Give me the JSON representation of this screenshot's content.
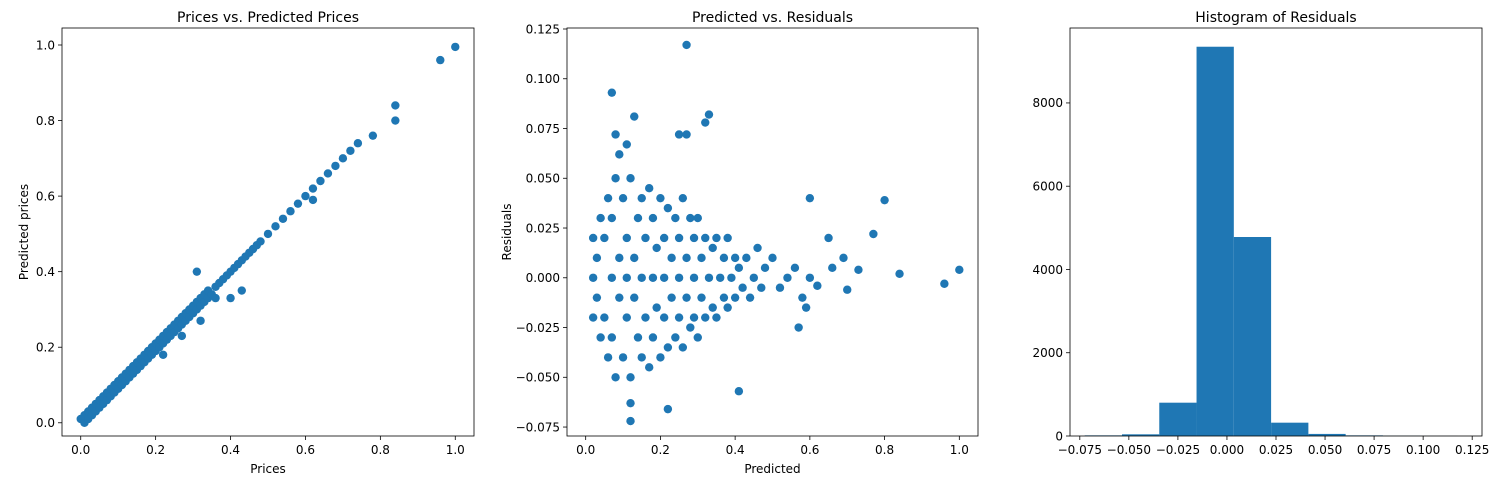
{
  "chart_data": [
    {
      "type": "scatter",
      "title": "Prices vs. Predicted Prices",
      "xlabel": "Prices",
      "ylabel": "Predicted prices",
      "xlim": [
        -0.05,
        1.05
      ],
      "ylim": [
        -0.035,
        1.045
      ],
      "xticks": [
        "0.0",
        "0.2",
        "0.4",
        "0.6",
        "0.8",
        "1.0"
      ],
      "xtick_values": [
        0,
        0.2,
        0.4,
        0.6,
        0.8,
        1.0
      ],
      "yticks": [
        "0.0",
        "0.2",
        "0.4",
        "0.6",
        "0.8",
        "1.0"
      ],
      "ytick_values": [
        0,
        0.2,
        0.4,
        0.6,
        0.8,
        1.0
      ],
      "color": "#1f77b4",
      "points": [
        [
          0.0,
          0.01
        ],
        [
          0.01,
          0.0
        ],
        [
          0.01,
          0.02
        ],
        [
          0.02,
          0.01
        ],
        [
          0.02,
          0.03
        ],
        [
          0.03,
          0.02
        ],
        [
          0.03,
          0.04
        ],
        [
          0.04,
          0.03
        ],
        [
          0.04,
          0.05
        ],
        [
          0.05,
          0.04
        ],
        [
          0.05,
          0.06
        ],
        [
          0.06,
          0.05
        ],
        [
          0.06,
          0.07
        ],
        [
          0.07,
          0.06
        ],
        [
          0.07,
          0.08
        ],
        [
          0.08,
          0.07
        ],
        [
          0.08,
          0.09
        ],
        [
          0.09,
          0.08
        ],
        [
          0.09,
          0.1
        ],
        [
          0.1,
          0.09
        ],
        [
          0.1,
          0.11
        ],
        [
          0.11,
          0.1
        ],
        [
          0.11,
          0.12
        ],
        [
          0.12,
          0.11
        ],
        [
          0.12,
          0.13
        ],
        [
          0.13,
          0.12
        ],
        [
          0.13,
          0.14
        ],
        [
          0.14,
          0.13
        ],
        [
          0.14,
          0.15
        ],
        [
          0.15,
          0.14
        ],
        [
          0.15,
          0.16
        ],
        [
          0.16,
          0.15
        ],
        [
          0.16,
          0.17
        ],
        [
          0.17,
          0.16
        ],
        [
          0.17,
          0.18
        ],
        [
          0.18,
          0.17
        ],
        [
          0.18,
          0.19
        ],
        [
          0.19,
          0.18
        ],
        [
          0.19,
          0.2
        ],
        [
          0.2,
          0.19
        ],
        [
          0.2,
          0.21
        ],
        [
          0.21,
          0.2
        ],
        [
          0.21,
          0.22
        ],
        [
          0.22,
          0.21
        ],
        [
          0.22,
          0.23
        ],
        [
          0.23,
          0.22
        ],
        [
          0.23,
          0.24
        ],
        [
          0.24,
          0.23
        ],
        [
          0.24,
          0.25
        ],
        [
          0.25,
          0.24
        ],
        [
          0.25,
          0.26
        ],
        [
          0.26,
          0.25
        ],
        [
          0.26,
          0.27
        ],
        [
          0.27,
          0.26
        ],
        [
          0.27,
          0.28
        ],
        [
          0.28,
          0.27
        ],
        [
          0.28,
          0.29
        ],
        [
          0.29,
          0.28
        ],
        [
          0.29,
          0.3
        ],
        [
          0.3,
          0.29
        ],
        [
          0.3,
          0.31
        ],
        [
          0.31,
          0.3
        ],
        [
          0.31,
          0.32
        ],
        [
          0.32,
          0.31
        ],
        [
          0.32,
          0.33
        ],
        [
          0.33,
          0.32
        ],
        [
          0.33,
          0.34
        ],
        [
          0.34,
          0.33
        ],
        [
          0.34,
          0.35
        ],
        [
          0.35,
          0.34
        ],
        [
          0.36,
          0.36
        ],
        [
          0.37,
          0.37
        ],
        [
          0.38,
          0.38
        ],
        [
          0.39,
          0.39
        ],
        [
          0.4,
          0.4
        ],
        [
          0.41,
          0.41
        ],
        [
          0.42,
          0.42
        ],
        [
          0.43,
          0.43
        ],
        [
          0.44,
          0.44
        ],
        [
          0.45,
          0.45
        ],
        [
          0.46,
          0.46
        ],
        [
          0.47,
          0.47
        ],
        [
          0.48,
          0.48
        ],
        [
          0.5,
          0.5
        ],
        [
          0.52,
          0.52
        ],
        [
          0.54,
          0.54
        ],
        [
          0.56,
          0.56
        ],
        [
          0.58,
          0.58
        ],
        [
          0.6,
          0.6
        ],
        [
          0.62,
          0.62
        ],
        [
          0.64,
          0.64
        ],
        [
          0.66,
          0.66
        ],
        [
          0.68,
          0.68
        ],
        [
          0.7,
          0.7
        ],
        [
          0.72,
          0.72
        ],
        [
          0.74,
          0.74
        ],
        [
          0.78,
          0.76
        ],
        [
          0.84,
          0.84
        ],
        [
          0.84,
          0.8
        ],
        [
          0.96,
          0.96
        ],
        [
          1.0,
          0.995
        ],
        [
          0.32,
          0.27
        ],
        [
          0.36,
          0.33
        ],
        [
          0.31,
          0.4
        ],
        [
          0.43,
          0.35
        ],
        [
          0.4,
          0.33
        ],
        [
          0.62,
          0.59
        ],
        [
          0.22,
          0.18
        ],
        [
          0.27,
          0.23
        ]
      ]
    },
    {
      "type": "scatter",
      "title": "Predicted vs. Residuals",
      "xlabel": "Predicted",
      "ylabel": "Residuals",
      "xlim": [
        -0.05,
        1.05
      ],
      "ylim": [
        -0.0795,
        0.1255
      ],
      "xticks": [
        "0.0",
        "0.2",
        "0.4",
        "0.6",
        "0.8",
        "1.0"
      ],
      "xtick_values": [
        0,
        0.2,
        0.4,
        0.6,
        0.8,
        1.0
      ],
      "yticks": [
        "−0.075",
        "−0.050",
        "−0.025",
        "0.000",
        "0.025",
        "0.050",
        "0.075",
        "0.100",
        "0.125"
      ],
      "ytick_values": [
        -0.075,
        -0.05,
        -0.025,
        0.0,
        0.025,
        0.05,
        0.075,
        0.1,
        0.125
      ],
      "color": "#1f77b4",
      "points": [
        [
          0.02,
          0.0
        ],
        [
          0.02,
          0.02
        ],
        [
          0.02,
          -0.02
        ],
        [
          0.03,
          0.01
        ],
        [
          0.03,
          -0.01
        ],
        [
          0.04,
          0.03
        ],
        [
          0.04,
          -0.03
        ],
        [
          0.05,
          0.02
        ],
        [
          0.05,
          -0.02
        ],
        [
          0.06,
          0.04
        ],
        [
          0.06,
          -0.04
        ],
        [
          0.07,
          0.0
        ],
        [
          0.07,
          0.03
        ],
        [
          0.07,
          -0.03
        ],
        [
          0.08,
          0.05
        ],
        [
          0.08,
          -0.05
        ],
        [
          0.09,
          0.01
        ],
        [
          0.09,
          -0.01
        ],
        [
          0.1,
          0.04
        ],
        [
          0.1,
          -0.04
        ],
        [
          0.11,
          0.0
        ],
        [
          0.11,
          0.02
        ],
        [
          0.11,
          -0.02
        ],
        [
          0.12,
          0.05
        ],
        [
          0.12,
          -0.05
        ],
        [
          0.13,
          0.01
        ],
        [
          0.13,
          -0.01
        ],
        [
          0.14,
          0.03
        ],
        [
          0.14,
          -0.03
        ],
        [
          0.15,
          0.0
        ],
        [
          0.15,
          0.04
        ],
        [
          0.15,
          -0.04
        ],
        [
          0.16,
          0.02
        ],
        [
          0.16,
          -0.02
        ],
        [
          0.17,
          0.045
        ],
        [
          0.17,
          -0.045
        ],
        [
          0.18,
          0.0
        ],
        [
          0.18,
          0.03
        ],
        [
          0.18,
          -0.03
        ],
        [
          0.19,
          0.015
        ],
        [
          0.19,
          -0.015
        ],
        [
          0.2,
          0.04
        ],
        [
          0.2,
          -0.04
        ],
        [
          0.21,
          0.0
        ],
        [
          0.21,
          0.02
        ],
        [
          0.21,
          -0.02
        ],
        [
          0.22,
          0.035
        ],
        [
          0.22,
          -0.035
        ],
        [
          0.23,
          0.01
        ],
        [
          0.23,
          -0.01
        ],
        [
          0.24,
          0.03
        ],
        [
          0.24,
          -0.03
        ],
        [
          0.25,
          0.0
        ],
        [
          0.25,
          0.02
        ],
        [
          0.25,
          -0.02
        ],
        [
          0.26,
          0.04
        ],
        [
          0.26,
          -0.035
        ],
        [
          0.27,
          0.01
        ],
        [
          0.27,
          -0.01
        ],
        [
          0.28,
          0.03
        ],
        [
          0.28,
          -0.025
        ],
        [
          0.29,
          0.0
        ],
        [
          0.29,
          0.02
        ],
        [
          0.29,
          -0.02
        ],
        [
          0.3,
          0.03
        ],
        [
          0.3,
          -0.03
        ],
        [
          0.31,
          0.01
        ],
        [
          0.31,
          -0.01
        ],
        [
          0.32,
          0.02
        ],
        [
          0.32,
          -0.02
        ],
        [
          0.33,
          0.0
        ],
        [
          0.34,
          0.015
        ],
        [
          0.34,
          -0.015
        ],
        [
          0.35,
          0.02
        ],
        [
          0.35,
          -0.02
        ],
        [
          0.36,
          0.0
        ],
        [
          0.37,
          0.01
        ],
        [
          0.37,
          -0.01
        ],
        [
          0.38,
          0.02
        ],
        [
          0.38,
          -0.015
        ],
        [
          0.39,
          0.0
        ],
        [
          0.4,
          0.01
        ],
        [
          0.4,
          -0.01
        ],
        [
          0.41,
          0.005
        ],
        [
          0.42,
          -0.005
        ],
        [
          0.43,
          0.01
        ],
        [
          0.44,
          -0.01
        ],
        [
          0.45,
          0.0
        ],
        [
          0.46,
          0.015
        ],
        [
          0.47,
          -0.005
        ],
        [
          0.48,
          0.005
        ],
        [
          0.5,
          0.01
        ],
        [
          0.52,
          -0.005
        ],
        [
          0.54,
          0.0
        ],
        [
          0.56,
          0.005
        ],
        [
          0.58,
          -0.01
        ],
        [
          0.6,
          0.0
        ],
        [
          0.07,
          0.093
        ],
        [
          0.27,
          0.117
        ],
        [
          0.33,
          0.082
        ],
        [
          0.32,
          0.078
        ],
        [
          0.08,
          0.072
        ],
        [
          0.25,
          0.072
        ],
        [
          0.27,
          0.072
        ],
        [
          0.13,
          0.081
        ],
        [
          0.09,
          0.062
        ],
        [
          0.11,
          0.067
        ],
        [
          0.41,
          -0.057
        ],
        [
          0.12,
          -0.072
        ],
        [
          0.12,
          -0.063
        ],
        [
          0.22,
          -0.066
        ],
        [
          0.6,
          0.04
        ],
        [
          0.8,
          0.039
        ],
        [
          0.77,
          0.022
        ],
        [
          0.96,
          -0.003
        ],
        [
          1.0,
          0.004
        ],
        [
          0.84,
          0.002
        ],
        [
          0.73,
          0.004
        ],
        [
          0.69,
          0.01
        ],
        [
          0.65,
          0.02
        ],
        [
          0.66,
          0.005
        ],
        [
          0.7,
          -0.006
        ],
        [
          0.59,
          -0.015
        ],
        [
          0.57,
          -0.025
        ],
        [
          0.62,
          -0.004
        ]
      ]
    },
    {
      "type": "bar",
      "title": "Histogram of Residuals",
      "xlabel": "",
      "ylabel": "",
      "xlim": [
        -0.08,
        0.13
      ],
      "ylim": [
        0,
        9800
      ],
      "xticks": [
        "−0.075",
        "−0.050",
        "−0.025",
        "0.000",
        "0.025",
        "0.050",
        "0.075",
        "0.100",
        "0.125"
      ],
      "xtick_values": [
        -0.075,
        -0.05,
        -0.025,
        0.0,
        0.025,
        0.05,
        0.075,
        0.1,
        0.125
      ],
      "yticks": [
        "0",
        "2000",
        "4000",
        "6000",
        "8000"
      ],
      "ytick_values": [
        0,
        2000,
        4000,
        6000,
        8000
      ],
      "color": "#1f77b4",
      "bin_edges": [
        -0.0725,
        -0.0535,
        -0.0345,
        -0.0155,
        0.0035,
        0.0225,
        0.0415,
        0.0605,
        0.0795,
        0.0985,
        0.1175
      ],
      "values": [
        15,
        40,
        800,
        9350,
        4780,
        320,
        50,
        15,
        5,
        2
      ]
    }
  ]
}
